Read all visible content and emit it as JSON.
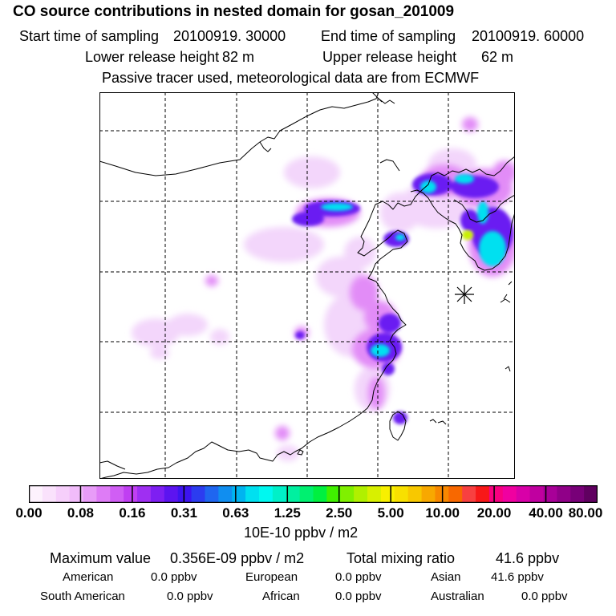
{
  "header": {
    "title": "CO  source contributions in nested domain for gosan_201009",
    "start_label": "Start time of sampling",
    "start_value": "20100919. 30000",
    "end_label": "End time of sampling",
    "end_value": "20100919. 60000",
    "lower_label": "Lower release height",
    "lower_value": "82 m",
    "upper_label": "Upper release height",
    "upper_value": "62 m",
    "note": "Passive tracer used, meteorological data are from ECMWF"
  },
  "colorbar": {
    "colors": [
      "#fdf2fd",
      "#fae2fc",
      "#f6cffb",
      "#f1bcfa",
      "#e89cf8",
      "#de7cf6",
      "#d05ef4",
      "#c03ff2",
      "#9f2ff2",
      "#7e1ff2",
      "#5c14f0",
      "#3d14f0",
      "#2c3cf0",
      "#1f66f0",
      "#108ef0",
      "#00b4f0",
      "#00e0f0",
      "#00f8f0",
      "#00f0c8",
      "#00f0a0",
      "#00f070",
      "#00f040",
      "#40f000",
      "#80f000",
      "#b0f000",
      "#d8f000",
      "#f8f000",
      "#f8e000",
      "#f8c800",
      "#f8a800",
      "#f88800",
      "#f86800",
      "#f84040",
      "#f81818",
      "#f80080",
      "#f000a0",
      "#d800a8",
      "#c000a0",
      "#a80098",
      "#900088",
      "#780078",
      "#600060"
    ],
    "tick_labels": [
      "0.00",
      "0.08",
      "0.16",
      "0.31",
      "0.63",
      "1.25",
      "2.50",
      "5.00",
      "10.00",
      "20.00",
      "40.00",
      "80.00"
    ],
    "units": "10E-10 ppbv / m2"
  },
  "summary": {
    "max_label": "Maximum value",
    "max_value": "0.356E-09 ppbv / m2",
    "total_label": "Total mixing ratio",
    "total_value": "41.6 ppbv"
  },
  "regions": [
    {
      "name": "American",
      "value": "0.0 ppbv"
    },
    {
      "name": "European",
      "value": "0.0 ppbv"
    },
    {
      "name": "Asian",
      "value": "41.6 ppbv"
    },
    {
      "name": "South American",
      "value": "0.0 ppbv"
    },
    {
      "name": "African",
      "value": "0.0 ppbv"
    },
    {
      "name": "Australian",
      "value": "0.0 ppbv"
    }
  ],
  "map": {
    "receptor": "gosan",
    "marker_icon": "asterisk-icon"
  }
}
